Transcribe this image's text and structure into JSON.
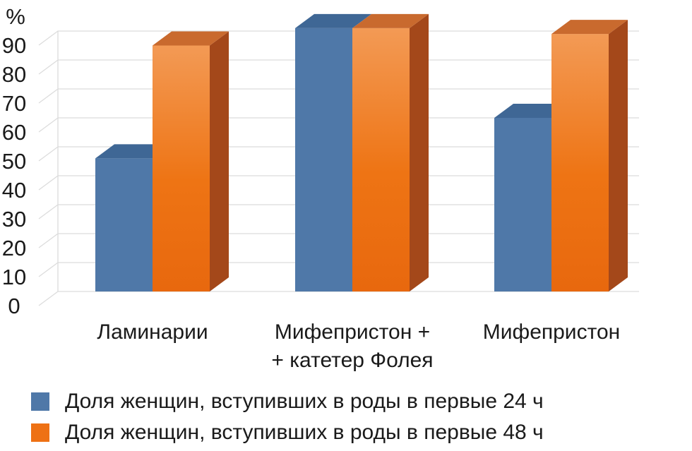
{
  "chart_data": {
    "type": "bar",
    "ylabel": "%",
    "ylim": [
      0,
      90
    ],
    "yticks": [
      "0",
      "10",
      "20",
      "30",
      "40",
      "50",
      "60",
      "70",
      "80",
      "90"
    ],
    "categories": [
      [
        "Ламинарии"
      ],
      [
        "Мифепристон +",
        "+ катетер Фолея"
      ],
      [
        "Мифепристон"
      ]
    ],
    "series": [
      {
        "name": "Доля женщин, вступивших в роды в первые 24 ч",
        "values": [
          46,
          91,
          60
        ]
      },
      {
        "name": "Доля женщин, вступивших в роды в первые 48 ч",
        "values": [
          85,
          91,
          89
        ]
      }
    ],
    "legend": "bottom",
    "grid": true,
    "style_3d": true
  },
  "colors": {
    "series1_front": "#4f78a8",
    "series1_top": "#3f6795",
    "series1_side": "#3b5f8a",
    "series2_top_grad": "#f39a55",
    "series2_front": "#ee6f12",
    "series2_side": "#a4481a",
    "series2_roof": "#c96a2e",
    "grid": "#dcdcdc"
  }
}
